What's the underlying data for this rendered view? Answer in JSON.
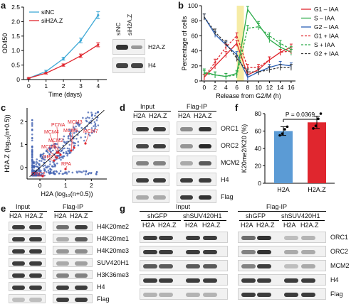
{
  "panels": {
    "a": "a",
    "b": "b",
    "c": "c",
    "d": "d",
    "e": "e",
    "f": "f",
    "g": "g"
  },
  "panel_a": {
    "blot_lanes": [
      "siNC",
      "siH2A.Z"
    ],
    "blot_rows": [
      "H2A.Z",
      "H4"
    ]
  },
  "panel_c": {
    "labels": [
      "PCNA",
      "MCM3",
      "MCM4",
      "MCM5",
      "MCM7",
      "MCM2",
      "MCM6",
      "ORC1",
      "ORC2",
      "RPA"
    ]
  },
  "panel_d": {
    "group_input": "Input",
    "group_ip": "Flag-IP",
    "lanes": [
      "H2A",
      "H2A.Z",
      "H2A",
      "H2A.Z"
    ],
    "rows": [
      "ORC1",
      "ORC2",
      "MCM2",
      "H4",
      "Flag"
    ]
  },
  "panel_e": {
    "group_input": "Input",
    "group_ip": "Flag-IP",
    "lanes": [
      "H2A",
      "H2A.Z",
      "H2A",
      "H2A.Z"
    ],
    "rows": [
      "H4K20me2",
      "H4K20me1",
      "H4K20me3",
      "SUV420H1",
      "H3K36me3",
      "H4",
      "Flag"
    ]
  },
  "panel_f": {
    "pvalue": "P = 0.0369"
  },
  "panel_g": {
    "group_input": "Input",
    "group_ip": "Flag-IP",
    "sh_a": "shGFP",
    "sh_b": "shSUV420H1",
    "lanes": [
      "H2A",
      "H2A.Z",
      "H2A",
      "H2A.Z"
    ],
    "rows": [
      "ORC1",
      "ORC2",
      "MCM2",
      "H4",
      "Flag"
    ]
  },
  "chart_data": [
    {
      "id": "a",
      "type": "line",
      "xlabel": "Time (days)",
      "ylabel": "OD450",
      "x": [
        0,
        1,
        2,
        3,
        4
      ],
      "xlim": [
        -0.3,
        4.5
      ],
      "ylim": [
        0,
        2.5
      ],
      "yticks": [
        0,
        0.5,
        1.0,
        1.5,
        2.0,
        2.5
      ],
      "series": [
        {
          "name": "siNC",
          "color": "#3fa9d6",
          "values": [
            0.05,
            0.28,
            0.72,
            1.35,
            2.22
          ],
          "err": [
            0.02,
            0.04,
            0.05,
            0.08,
            0.12
          ]
        },
        {
          "name": "siH2A.Z",
          "color": "#e0262e",
          "values": [
            0.05,
            0.22,
            0.5,
            0.82,
            1.2
          ],
          "err": [
            0.02,
            0.03,
            0.04,
            0.06,
            0.07
          ]
        }
      ]
    },
    {
      "id": "b",
      "type": "line",
      "xlabel": "Release from G2/M (h)",
      "ylabel": "Percentage of cells",
      "x": [
        0,
        2,
        4,
        6,
        8,
        10,
        12,
        14,
        16
      ],
      "xlim": [
        -0.5,
        16.8
      ],
      "ylim": [
        0,
        100
      ],
      "yticks": [
        0,
        20,
        40,
        60,
        80,
        100
      ],
      "highlight": [
        6,
        7.3
      ],
      "series": [
        {
          "name": "G1 – IAA",
          "color": "#e0262e",
          "dash": false,
          "values": [
            5,
            20,
            35,
            50,
            8,
            15,
            28,
            38,
            45
          ]
        },
        {
          "name": "S – IAA",
          "color": "#2cab4a",
          "dash": false,
          "values": [
            12,
            8,
            6,
            10,
            95,
            75,
            55,
            45,
            38
          ]
        },
        {
          "name": "G2 – IAA",
          "color": "#2b5fb5",
          "dash": false,
          "values": [
            85,
            62,
            48,
            35,
            5,
            12,
            18,
            22,
            20
          ]
        },
        {
          "name": "G1 + IAA",
          "color": "#e0262e",
          "dash": true,
          "values": [
            5,
            25,
            45,
            60,
            18,
            18,
            28,
            38,
            40
          ]
        },
        {
          "name": "S + IAA",
          "color": "#2cab4a",
          "dash": true,
          "values": [
            10,
            8,
            6,
            8,
            70,
            72,
            60,
            50,
            42
          ]
        },
        {
          "name": "G2 + IAA",
          "color": "#333333",
          "dash": true,
          "values": [
            85,
            65,
            50,
            30,
            12,
            12,
            15,
            18,
            18
          ]
        }
      ]
    },
    {
      "id": "c",
      "type": "scatter",
      "xlabel": "H2A (log10(n+0.5))",
      "ylabel": "H2A.Z (log10(n+0.5))",
      "xlim": [
        -0.5,
        2.6
      ],
      "ylim": [
        -0.5,
        2.6
      ],
      "xticks": [
        0,
        1,
        2
      ],
      "yticks": [
        0,
        1,
        2
      ]
    },
    {
      "id": "f",
      "type": "bar",
      "ylabel": "K20me2/K20 (%)",
      "categories": [
        "H2A",
        "H2A.Z"
      ],
      "values": [
        60,
        70
      ],
      "err": [
        5,
        7
      ],
      "colors": [
        "#5b9bd5",
        "#e0262e"
      ],
      "ylim": [
        0,
        80
      ],
      "yticks": [
        0,
        20,
        40,
        60,
        80
      ],
      "points": [
        [
          55,
          57,
          62,
          65
        ],
        [
          63,
          66,
          74,
          80
        ]
      ]
    }
  ]
}
